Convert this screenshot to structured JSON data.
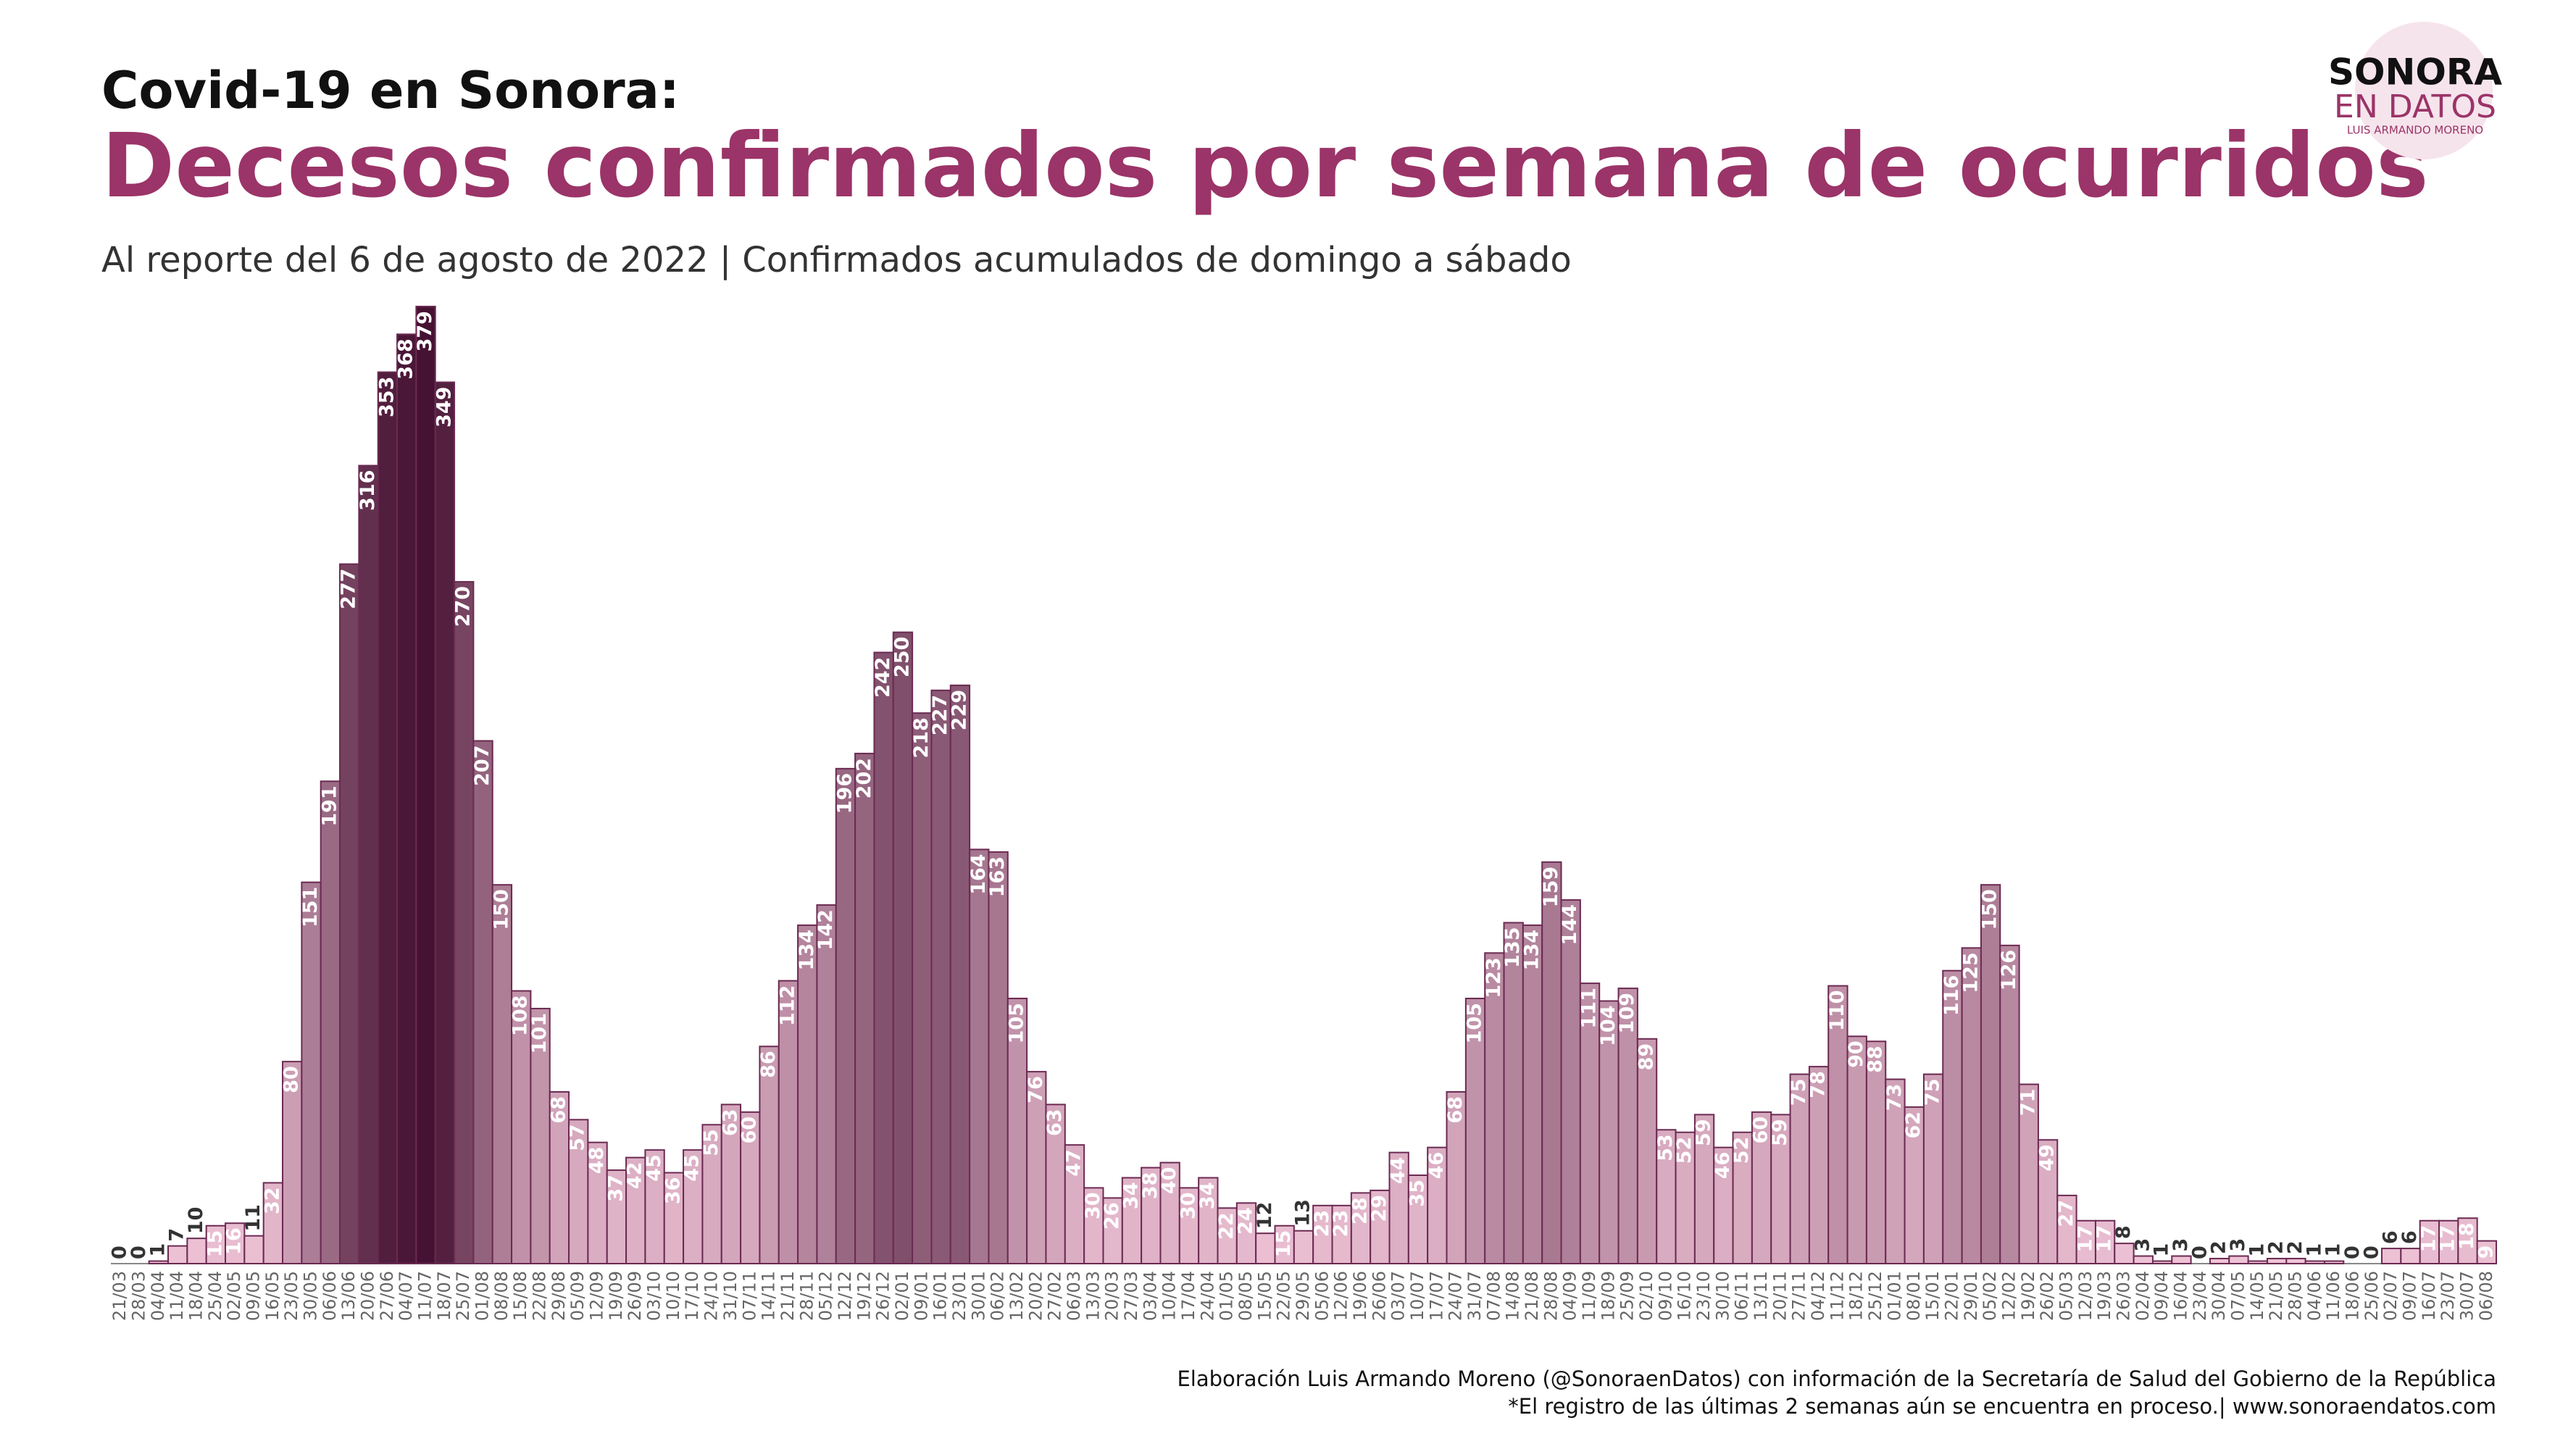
{
  "chart_data": {
    "type": "bar",
    "suptitle": "Covid-19  en Sonora:",
    "title": "Decesos confirmados por semana de ocurridos",
    "subtitle": "Al reporte del 6 de agosto de 2022 | Confirmados acumulados de domingo a sábado",
    "logo": [
      "SONORA",
      "EN DATOS",
      "LUIS ARMANDO MORENO"
    ],
    "source": [
      "Elaboración Luis Armando Moreno (@SonoraenDatos) con información de la Secretaría de Salud del Gobierno de la República",
      "*El registro de las últimas 2 semanas aún se encuentra en proceso.| www.sonoraendatos.com"
    ],
    "categories": [
      "21/03",
      "28/03",
      "04/04",
      "11/04",
      "18/04",
      "25/04",
      "02/05",
      "09/05",
      "16/05",
      "23/05",
      "30/05",
      "06/06",
      "13/06",
      "20/06",
      "27/06",
      "04/07",
      "11/07",
      "18/07",
      "25/07",
      "01/08",
      "08/08",
      "15/08",
      "22/08",
      "29/08",
      "05/09",
      "12/09",
      "19/09",
      "26/09",
      "03/10",
      "10/10",
      "17/10",
      "24/10",
      "31/10",
      "07/11",
      "14/11",
      "21/11",
      "28/11",
      "05/12",
      "12/12",
      "19/12",
      "26/12",
      "02/01",
      "09/01",
      "16/01",
      "23/01",
      "30/01",
      "06/02",
      "13/02",
      "20/02",
      "27/02",
      "06/03",
      "13/03",
      "20/03",
      "27/03",
      "03/04",
      "10/04",
      "17/04",
      "24/04",
      "01/05",
      "08/05",
      "15/05",
      "22/05",
      "29/05",
      "05/06",
      "12/06",
      "19/06",
      "26/06",
      "03/07",
      "10/07",
      "17/07",
      "24/07",
      "31/07",
      "07/08",
      "14/08",
      "21/08",
      "28/08",
      "04/09",
      "11/09",
      "18/09",
      "25/09",
      "02/10",
      "09/10",
      "16/10",
      "23/10",
      "30/10",
      "06/11",
      "13/11",
      "20/11",
      "27/11",
      "04/12",
      "11/12",
      "18/12",
      "25/12",
      "01/01",
      "08/01",
      "15/01",
      "22/01",
      "29/01",
      "05/02",
      "12/02",
      "19/02",
      "26/02",
      "05/03",
      "12/03",
      "19/03",
      "26/03",
      "02/04",
      "09/04",
      "16/04",
      "23/04",
      "30/04",
      "07/05",
      "14/05",
      "21/05",
      "28/05",
      "04/06",
      "11/06",
      "18/06",
      "25/06",
      "02/07",
      "09/07",
      "16/07",
      "23/07",
      "30/07",
      "06/08"
    ],
    "values": [
      0,
      0,
      1,
      7,
      10,
      15,
      16,
      11,
      32,
      80,
      151,
      191,
      277,
      316,
      353,
      368,
      379,
      349,
      270,
      207,
      150,
      108,
      101,
      68,
      57,
      48,
      37,
      42,
      45,
      36,
      45,
      55,
      63,
      60,
      86,
      112,
      134,
      142,
      196,
      202,
      242,
      250,
      218,
      227,
      229,
      164,
      163,
      105,
      76,
      63,
      47,
      30,
      26,
      34,
      38,
      40,
      30,
      34,
      22,
      24,
      12,
      15,
      13,
      23,
      23,
      28,
      29,
      44,
      35,
      46,
      68,
      105,
      123,
      135,
      134,
      159,
      144,
      111,
      104,
      109,
      89,
      53,
      52,
      59,
      46,
      52,
      60,
      59,
      75,
      78,
      110,
      90,
      88,
      73,
      62,
      75,
      116,
      125,
      150,
      126,
      71,
      49,
      27,
      17,
      17,
      8,
      3,
      1,
      3,
      0,
      2,
      3,
      1,
      2,
      2,
      1,
      1,
      0,
      0,
      6,
      6,
      17,
      17,
      18,
      9
    ],
    "color_low": "#f0c4d7",
    "color_high": "#461233",
    "outline": "#6b2a52"
  }
}
